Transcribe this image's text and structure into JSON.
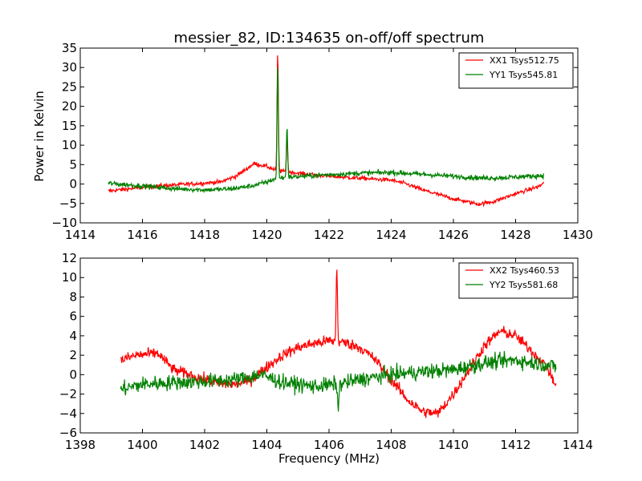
{
  "chart_data": [
    {
      "type": "line",
      "title": "messier_82, ID:134635 on-off/off spectrum",
      "xlabel": "",
      "ylabel": "Power in Kelvin",
      "xlim": [
        1414,
        1430
      ],
      "ylim": [
        -10,
        35
      ],
      "xticks": [
        1414,
        1416,
        1418,
        1420,
        1422,
        1424,
        1426,
        1428,
        1430
      ],
      "yticks": [
        -10,
        -5,
        0,
        5,
        10,
        15,
        20,
        25,
        30,
        35
      ],
      "legend_position": "top-right",
      "grid": false,
      "series": [
        {
          "name": "XX1 Tsys512.75",
          "color": "#ff0000",
          "noise": 0.5,
          "x_range": [
            1414.9,
            1428.9
          ],
          "baseline": [
            [
              1414.9,
              -1.8
            ],
            [
              1415.5,
              -1.3
            ],
            [
              1416.5,
              -0.5
            ],
            [
              1417.5,
              0
            ],
            [
              1418.5,
              0.5
            ],
            [
              1419.0,
              2
            ],
            [
              1419.6,
              5.3
            ],
            [
              1420.0,
              4.5
            ],
            [
              1420.3,
              3.5
            ],
            [
              1421.0,
              2.8
            ],
            [
              1422.0,
              2.0
            ],
            [
              1423.0,
              1.5
            ],
            [
              1424.0,
              1.0
            ],
            [
              1424.5,
              0
            ],
            [
              1425.0,
              -1.5
            ],
            [
              1426.0,
              -3.8
            ],
            [
              1426.8,
              -5.2
            ],
            [
              1427.3,
              -4.5
            ],
            [
              1428.0,
              -2.5
            ],
            [
              1428.8,
              -0.5
            ],
            [
              1428.9,
              0.5
            ]
          ],
          "peaks": [
            {
              "x": 1420.35,
              "y": 34
            },
            {
              "x": 1420.65,
              "y": 12
            }
          ]
        },
        {
          "name": "YY1 Tsys545.81",
          "color": "#008000",
          "noise": 0.6,
          "x_range": [
            1414.9,
            1428.9
          ],
          "baseline": [
            [
              1414.9,
              0.2
            ],
            [
              1416.0,
              -0.5
            ],
            [
              1417.0,
              -1.2
            ],
            [
              1418.0,
              -1.5
            ],
            [
              1418.8,
              -1.3
            ],
            [
              1419.5,
              -0.5
            ],
            [
              1420.0,
              0.5
            ],
            [
              1420.3,
              1.5
            ],
            [
              1421.5,
              2.2
            ],
            [
              1423.0,
              2.8
            ],
            [
              1424.0,
              3.0
            ],
            [
              1425.0,
              2.5
            ],
            [
              1426.0,
              2.0
            ],
            [
              1427.0,
              1.5
            ],
            [
              1428.0,
              1.8
            ],
            [
              1428.9,
              2.2
            ]
          ],
          "peaks": [
            {
              "x": 1420.35,
              "y": 31
            },
            {
              "x": 1420.65,
              "y": 15
            }
          ]
        }
      ]
    },
    {
      "type": "line",
      "title": "",
      "xlabel": "Frequency (MHz)",
      "ylabel": "",
      "xlim": [
        1398,
        1414
      ],
      "ylim": [
        -6,
        12
      ],
      "xticks": [
        1398,
        1400,
        1402,
        1404,
        1406,
        1408,
        1410,
        1412,
        1414
      ],
      "yticks": [
        -6,
        -4,
        -2,
        0,
        2,
        4,
        6,
        8,
        10,
        12
      ],
      "legend_position": "top-right",
      "grid": false,
      "series": [
        {
          "name": "XX2 Tsys460.53",
          "color": "#ff0000",
          "noise": 0.55,
          "x_range": [
            1399.3,
            1413.3
          ],
          "baseline": [
            [
              1399.3,
              1.5
            ],
            [
              1399.8,
              2.0
            ],
            [
              1400.5,
              2.2
            ],
            [
              1401.0,
              0.5
            ],
            [
              1401.5,
              0.0
            ],
            [
              1402.0,
              -0.5
            ],
            [
              1402.5,
              -1.0
            ],
            [
              1403.0,
              -1.0
            ],
            [
              1403.5,
              -0.5
            ],
            [
              1404.0,
              0.8
            ],
            [
              1404.5,
              2.0
            ],
            [
              1405.0,
              2.8
            ],
            [
              1405.5,
              3.2
            ],
            [
              1406.0,
              3.5
            ],
            [
              1406.5,
              3.3
            ],
            [
              1407.0,
              2.8
            ],
            [
              1407.5,
              1.5
            ],
            [
              1408.0,
              -0.5
            ],
            [
              1408.5,
              -2.5
            ],
            [
              1409.0,
              -3.8
            ],
            [
              1409.5,
              -4.0
            ],
            [
              1410.0,
              -2.0
            ],
            [
              1410.5,
              0.5
            ],
            [
              1411.0,
              3.0
            ],
            [
              1411.5,
              4.5
            ],
            [
              1412.0,
              4.0
            ],
            [
              1412.5,
              2.5
            ],
            [
              1413.0,
              0.8
            ],
            [
              1413.3,
              -1.2
            ]
          ],
          "peaks": [
            {
              "x": 1406.25,
              "y": 11.3
            }
          ]
        },
        {
          "name": "YY2 Tsys581.68",
          "color": "#008000",
          "noise": 0.75,
          "x_range": [
            1399.3,
            1413.3
          ],
          "baseline": [
            [
              1399.3,
              -1.5
            ],
            [
              1400.0,
              -1.0
            ],
            [
              1401.0,
              -0.8
            ],
            [
              1402.0,
              -0.7
            ],
            [
              1403.0,
              -0.5
            ],
            [
              1403.8,
              0.0
            ],
            [
              1404.5,
              -0.8
            ],
            [
              1405.5,
              -1.2
            ],
            [
              1406.3,
              -1.0
            ],
            [
              1407.0,
              -0.5
            ],
            [
              1408.0,
              0.0
            ],
            [
              1409.0,
              0.3
            ],
            [
              1410.0,
              0.5
            ],
            [
              1411.0,
              1.2
            ],
            [
              1412.0,
              1.5
            ],
            [
              1413.0,
              1.0
            ],
            [
              1413.3,
              0.8
            ]
          ],
          "peaks": [
            {
              "x": 1406.3,
              "y": -3.8
            }
          ]
        }
      ]
    }
  ]
}
